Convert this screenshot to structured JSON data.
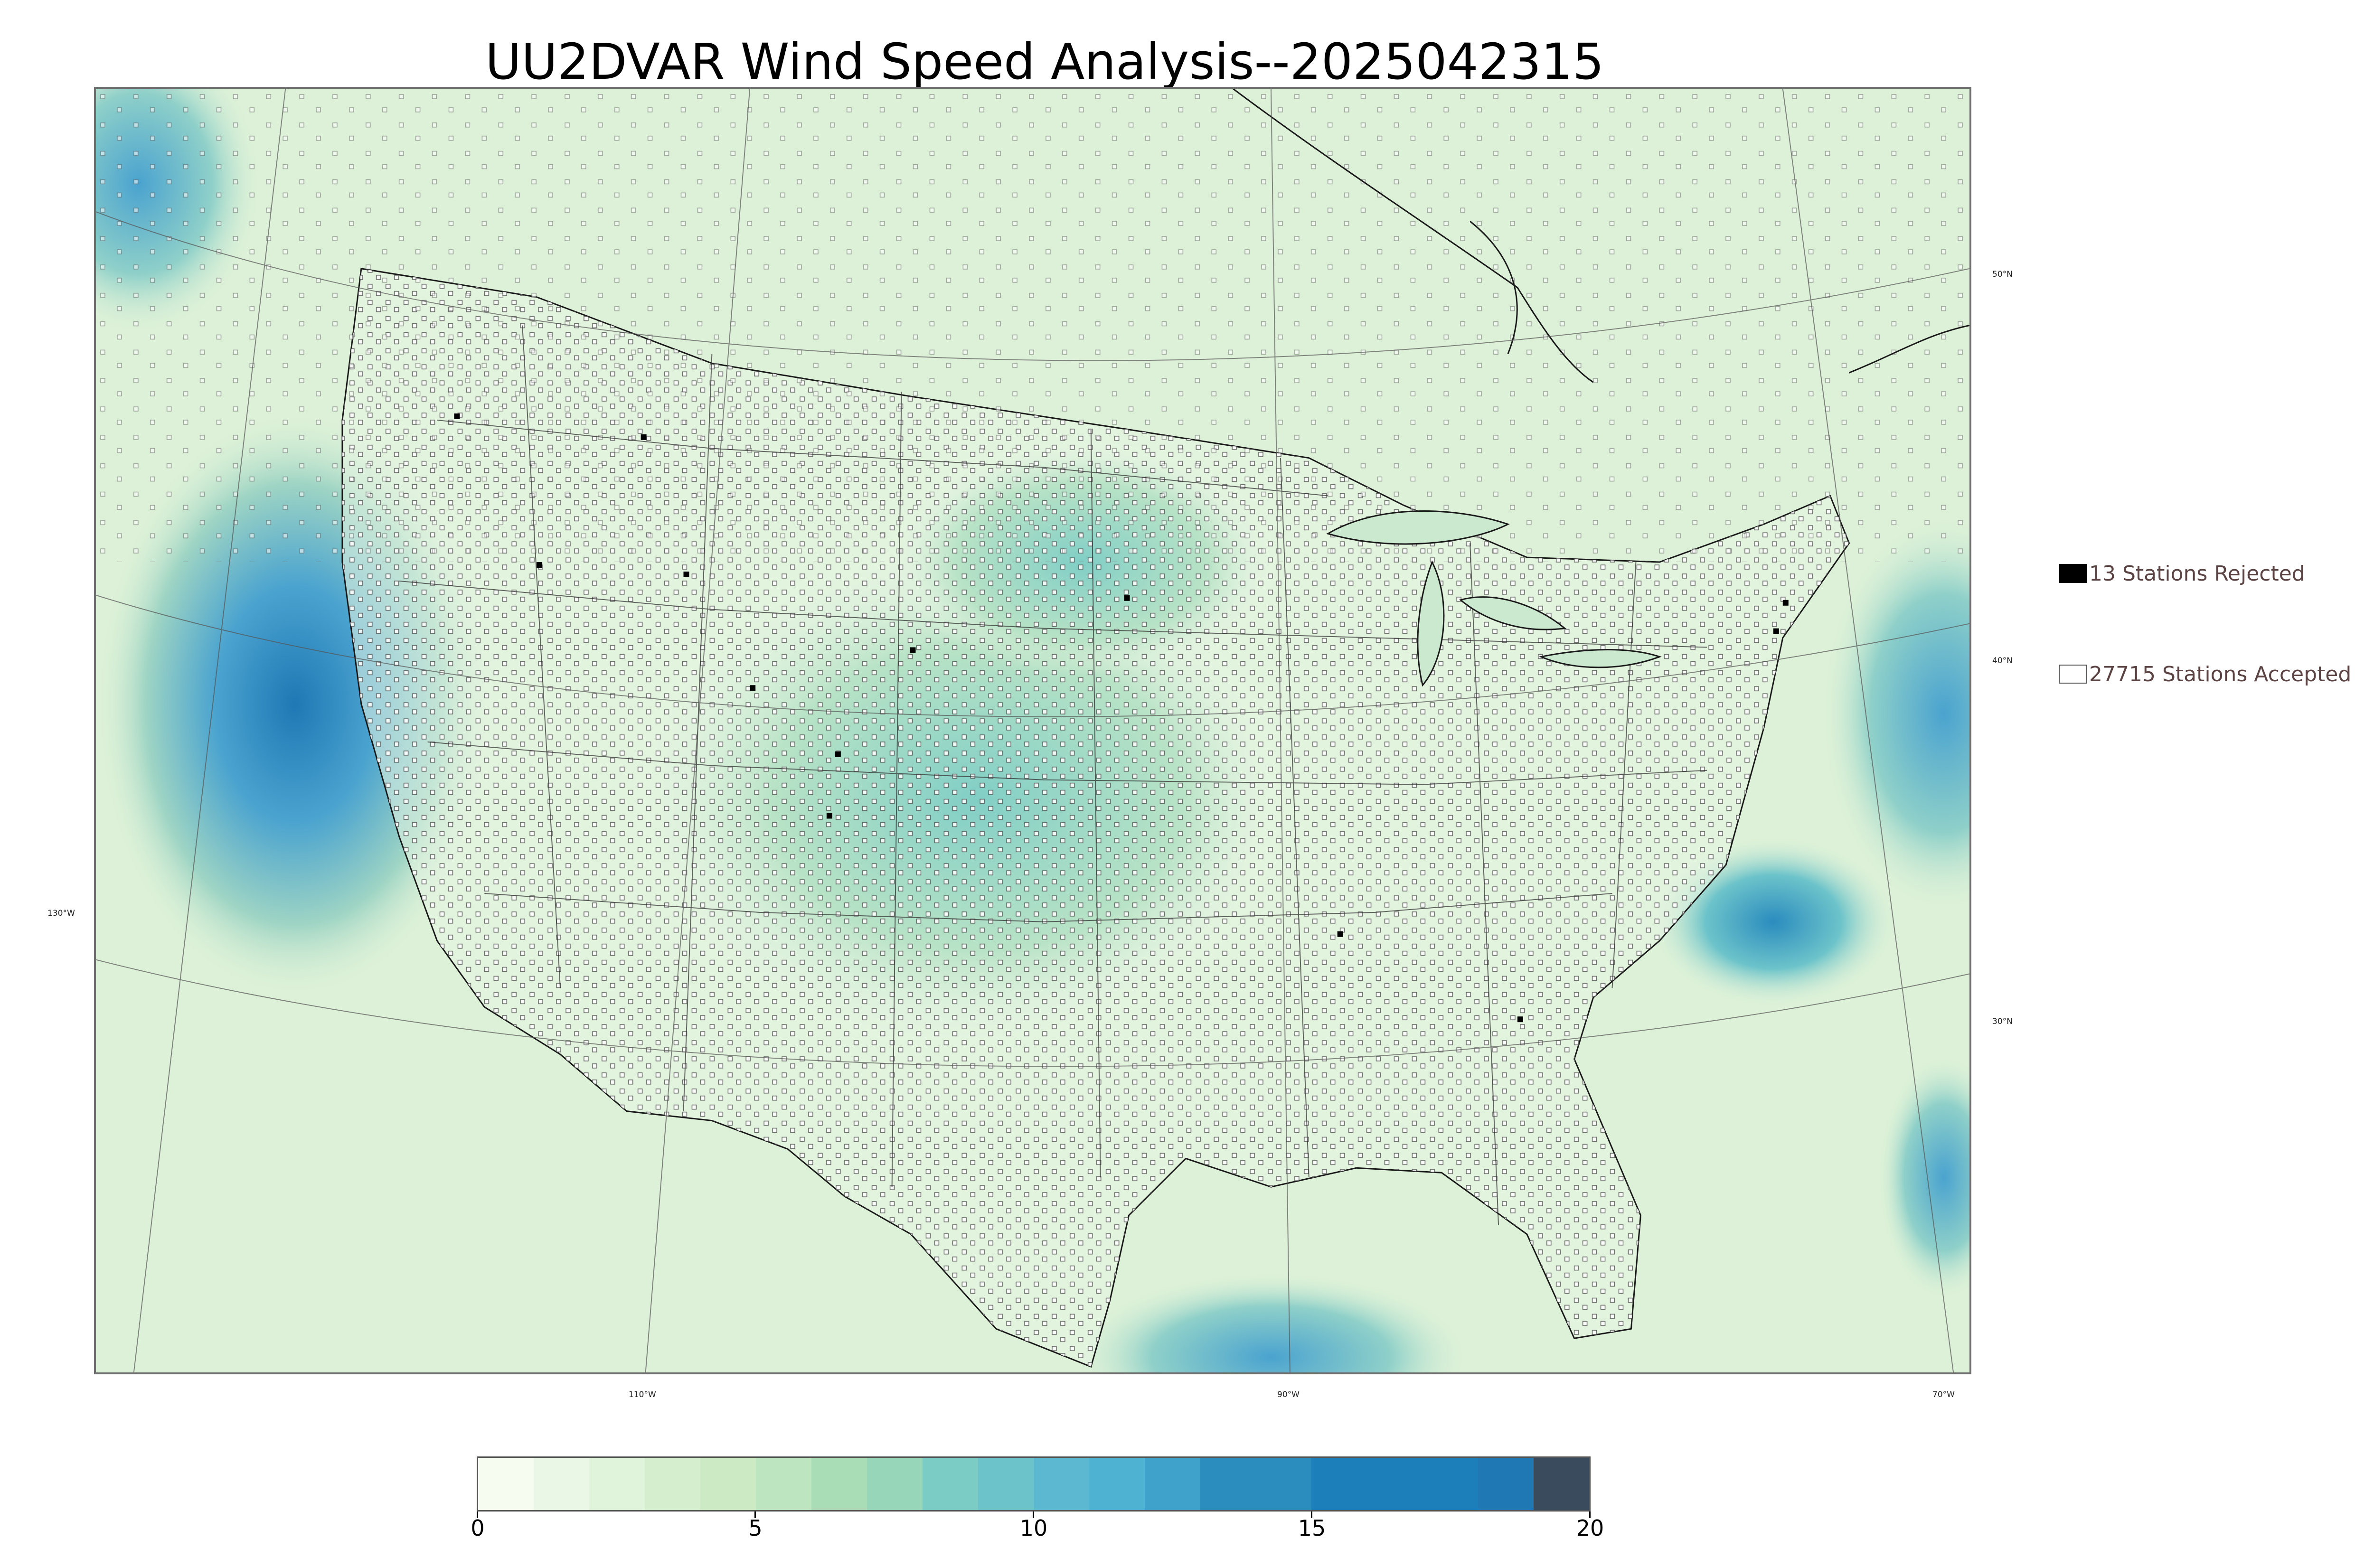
{
  "title": "UU2DVAR Wind Speed Analysis--2025042315",
  "map": {
    "lat_labels": [
      "50°N",
      "40°N",
      "30°N"
    ],
    "lon_labels": [
      "130°W",
      "110°W",
      "90°W",
      "70°W"
    ],
    "colors": {
      "land_base": "#e7f5e2",
      "ocean_base": "#d9f0d5",
      "strong_wind": "#2b8cbe",
      "moderate_wind": "#7bccc4",
      "boundary": "#222222"
    }
  },
  "legend": {
    "rejected_label": "13 Stations Rejected",
    "accepted_label": "27715 Stations Accepted",
    "rejected_count": 13,
    "accepted_count": 27715
  },
  "colorbar": {
    "ticks": [
      "0",
      "5",
      "10",
      "15",
      "20"
    ],
    "min": 0,
    "max": 20,
    "colors": [
      "#f7fcf0",
      "#ebf7e6",
      "#e0f3db",
      "#d4eece",
      "#ccebc5",
      "#bde5bf",
      "#a8ddb5",
      "#97d6b8",
      "#7bccc4",
      "#6cc3ca",
      "#5bb8d0",
      "#4eb3d3",
      "#3fa2cb",
      "#2b8cbe",
      "#2b8cbe",
      "#1d7fba",
      "#1d7fba",
      "#1d7fba",
      "#1f77b4",
      "#3b4b5e"
    ]
  }
}
